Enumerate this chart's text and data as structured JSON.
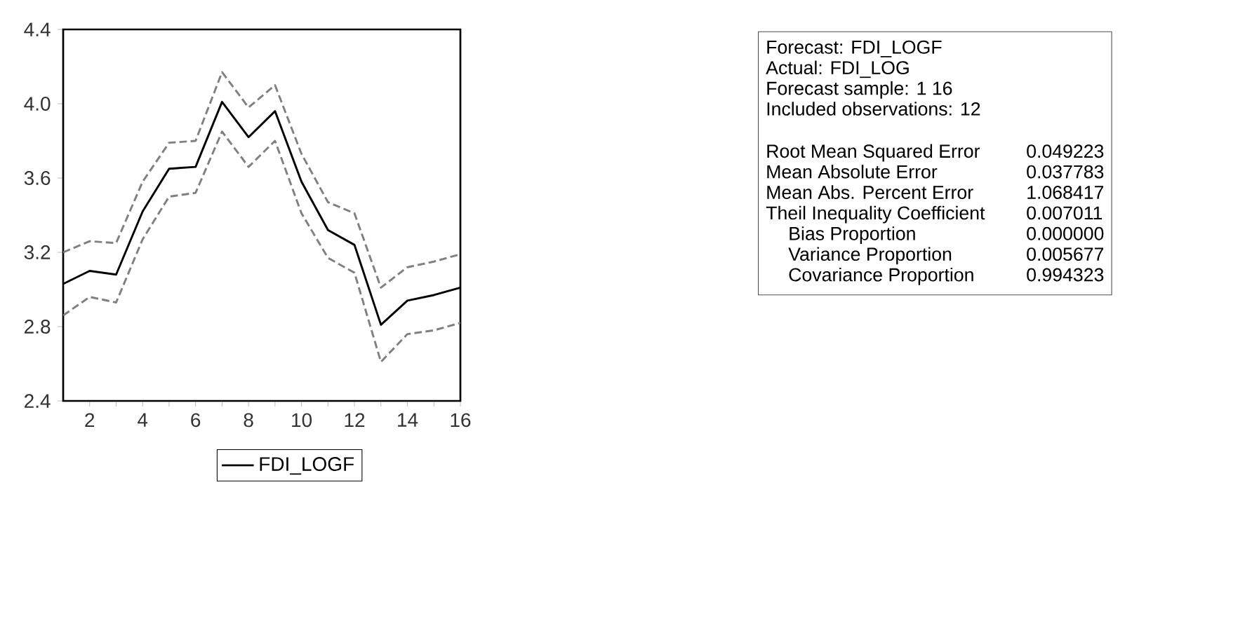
{
  "chart_data": {
    "type": "line",
    "x": [
      1,
      2,
      3,
      4,
      5,
      6,
      7,
      8,
      9,
      10,
      11,
      12,
      13,
      14,
      15,
      16
    ],
    "series": [
      {
        "name": "FDI_LOGF",
        "color": "#000000",
        "line_style": "solid",
        "values": [
          3.03,
          3.1,
          3.08,
          3.42,
          3.65,
          3.66,
          4.01,
          3.82,
          3.96,
          3.58,
          3.32,
          3.24,
          2.81,
          2.94,
          2.97,
          3.01
        ]
      },
      {
        "color": "#808080",
        "line_style": "dashed",
        "values": [
          3.2,
          3.26,
          3.25,
          3.58,
          3.79,
          3.8,
          4.17,
          3.98,
          4.1,
          3.73,
          3.47,
          3.41,
          3.01,
          3.12,
          3.15,
          3.19
        ]
      },
      {
        "color": "#808080",
        "line_style": "dashed",
        "values": [
          2.86,
          2.96,
          2.93,
          3.27,
          3.5,
          3.52,
          3.85,
          3.66,
          3.8,
          3.41,
          3.17,
          3.09,
          2.61,
          2.76,
          2.78,
          2.82
        ]
      }
    ],
    "xlim": [
      1,
      16
    ],
    "xticks": [
      2,
      4,
      6,
      8,
      10,
      12,
      14,
      16
    ],
    "ylim": [
      2.4,
      4.4
    ],
    "yticks": [
      2.4,
      2.8,
      3.2,
      3.6,
      {
        "value": 4,
        "label": "4.0"
      },
      4.4
    ],
    "grid": false,
    "legend": "bottom",
    "marker": "none",
    "annotations": [
      "Forecast: FDI_LOGF",
      "Actual: FDI_LOG",
      "Forecast sample: 1 16",
      "Included observations: 12",
      "Root Mean Squared Error",
      "0.049223",
      "Mean Absolute Error",
      "0.037783",
      "Mean Abs. Percent Error",
      "1.068417",
      "Theil Inequality Coefficient",
      "0.007011",
      "Bias Proportion",
      "0.000000",
      "Variance Proportion",
      "0.005677",
      "Covariance Proportion",
      "0.994323"
    ]
  }
}
